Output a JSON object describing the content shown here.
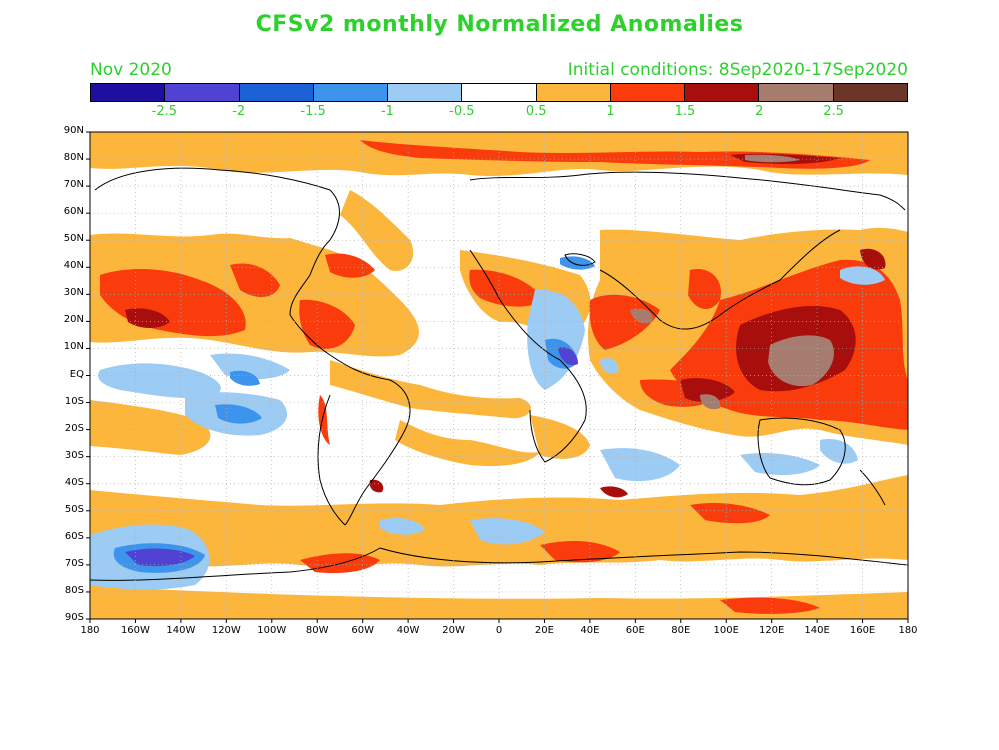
{
  "title": "CFSv2 monthly Normalized Anomalies",
  "month": "Nov 2020",
  "initial": "Initial conditions: 8Sep2020-17Sep2020",
  "colorbar": {
    "colors": [
      "#1e0fa0",
      "#5043d4",
      "#1b60d5",
      "#3d94ec",
      "#9ccbf4",
      "#ffffff",
      "#fcb63b",
      "#fa3c0c",
      "#a80e0c",
      "#a67c6f",
      "#6b3527"
    ],
    "labels": [
      "-2.5",
      "-2",
      "-1.5",
      "-1",
      "-0.5",
      "0.5",
      "1",
      "1.5",
      "2",
      "2.5"
    ]
  },
  "lat_labels": [
    "90N",
    "80N",
    "70N",
    "60N",
    "50N",
    "40N",
    "30N",
    "20N",
    "10N",
    "EQ",
    "10S",
    "20S",
    "30S",
    "40S",
    "50S",
    "60S",
    "70S",
    "80S",
    "90S"
  ],
  "lon_labels": [
    "180",
    "160W",
    "140W",
    "120W",
    "100W",
    "80W",
    "60W",
    "40W",
    "20W",
    "0",
    "20E",
    "40E",
    "60E",
    "80E",
    "100E",
    "120E",
    "140E",
    "160E",
    "180"
  ]
}
